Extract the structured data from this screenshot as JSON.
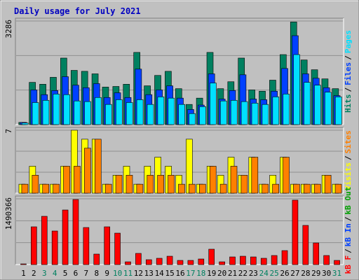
{
  "chart_data": [
    {
      "type": "bar",
      "title": "Daily usage for July 2021",
      "categories": [
        "1",
        "2",
        "3",
        "4",
        "5",
        "6",
        "7",
        "8",
        "9",
        "10",
        "11",
        "12",
        "13",
        "14",
        "15",
        "16",
        "17",
        "18",
        "19",
        "20",
        "21",
        "22",
        "23",
        "24",
        "25",
        "26",
        "27",
        "28",
        "29",
        "30",
        "31"
      ],
      "weekends": [
        3,
        4,
        10,
        11,
        17,
        18,
        24,
        25,
        31
      ],
      "weekend_color": "#008060",
      "legend_separator": "/",
      "ylim": [
        0,
        3286
      ],
      "yticks": [
        3286
      ],
      "grid_divisions": 3,
      "series": [
        {
          "name": "Hits",
          "color": "#008060",
          "values": [
            70,
            1340,
            1280,
            1500,
            2110,
            1720,
            1690,
            1610,
            1190,
            1210,
            1280,
            2290,
            1230,
            1560,
            1690,
            1140,
            640,
            840,
            2290,
            1140,
            1360,
            2110,
            1100,
            1060,
            1410,
            2220,
            3256,
            2050,
            1740,
            1450,
            1140
          ]
        },
        {
          "name": "Files",
          "color": "#0040ff",
          "values": [
            70,
            1100,
            950,
            1080,
            1520,
            1250,
            1170,
            1300,
            860,
            1010,
            860,
            1760,
            950,
            1100,
            1230,
            840,
            480,
            620,
            1610,
            810,
            1080,
            1580,
            810,
            790,
            1060,
            1780,
            2820,
            1610,
            1470,
            1170,
            920
          ]
        },
        {
          "name": "Pages",
          "color": "#00e0ff",
          "values": [
            50,
            700,
            770,
            970,
            950,
            750,
            730,
            860,
            640,
            790,
            700,
            790,
            640,
            880,
            840,
            640,
            350,
            570,
            1320,
            750,
            770,
            730,
            680,
            640,
            880,
            970,
            2220,
            1340,
            1250,
            1030,
            880
          ]
        }
      ]
    },
    {
      "type": "bar",
      "ylim": [
        0,
        7
      ],
      "yticks": [
        7
      ],
      "grid_divisions": 3,
      "series": [
        {
          "name": "Visits",
          "color": "#ffff00",
          "values": [
            1,
            3,
            1,
            1,
            3,
            7,
            6,
            6,
            1,
            2,
            3,
            1,
            3,
            4,
            3,
            2,
            6,
            1,
            3,
            2,
            4,
            2,
            4,
            1,
            2,
            4,
            1,
            1,
            1,
            2,
            1
          ]
        },
        {
          "name": "Sites",
          "color": "#ff8000",
          "values": [
            1,
            2,
            1,
            1,
            3,
            3,
            5,
            6,
            1,
            2,
            2,
            1,
            2,
            2,
            2,
            1,
            1,
            1,
            3,
            1,
            3,
            2,
            4,
            1,
            1,
            4,
            1,
            1,
            1,
            2,
            1
          ]
        }
      ]
    },
    {
      "type": "bar",
      "ylim": [
        0,
        1490366
      ],
      "yticks": [
        1490366
      ],
      "grid_divisions": 3,
      "series": [
        {
          "name": "kB F",
          "color": "#ff0000",
          "values": [
            16000,
            856000,
            1094000,
            761000,
            1237000,
            1474000,
            840000,
            238000,
            856000,
            713000,
            63000,
            254000,
            111000,
            143000,
            190000,
            95000,
            95000,
            127000,
            349000,
            63000,
            174000,
            190000,
            174000,
            143000,
            206000,
            317000,
            1460000,
            888000,
            491000,
            206000,
            95000
          ]
        }
      ],
      "extra_legend": [
        {
          "name": "kB In",
          "color": "#0040ff"
        },
        {
          "name": "kB Out",
          "color": "#00a000"
        }
      ]
    }
  ]
}
